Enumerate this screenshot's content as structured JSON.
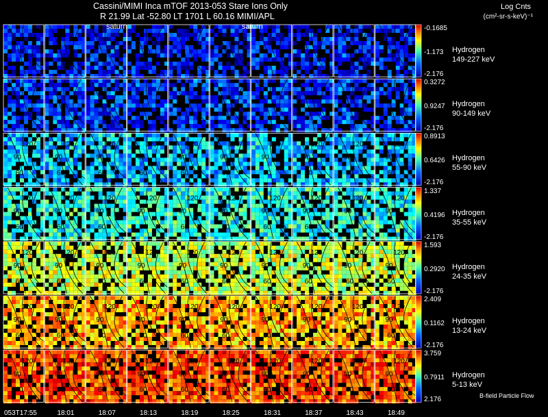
{
  "header": {
    "title": "Cassini/MIMI Inca mTOF  2013-053    Stare    Ions Only",
    "subtitle": "R        21.99 Lat -52.80 LT 1701 L          60.16  MIMI/APL",
    "saturn_label": "saturn",
    "units_title": "Log Cnts",
    "units_sub": "(cm²-sr-s-keV)⁻¹"
  },
  "chart_data": {
    "type": "heatmap",
    "title": "Cassini/MIMI Inca mTOF  2013-053    Stare    Ions Only",
    "time_ticks": [
      "053T17:55",
      "18:01",
      "18:07",
      "18:13",
      "18:19",
      "18:25",
      "18:31",
      "18:37",
      "18:43",
      "18:49"
    ],
    "contour_labels": [
      "120",
      "90",
      "60"
    ],
    "rows": [
      {
        "species": "Hydrogen",
        "energy": "149-227 keV",
        "max": "-0.1685",
        "mid": "-1.173",
        "min": "-2.176",
        "level": 0.12
      },
      {
        "species": "Hydrogen",
        "energy": "90-149 keV",
        "max": "0.3272",
        "mid": "0.9247",
        "min": "-2.176",
        "level": 0.16
      },
      {
        "species": "Hydrogen",
        "energy": "55-90 keV",
        "max": "0.8913",
        "mid": "0.6426",
        "min": "-2.176",
        "level": 0.3
      },
      {
        "species": "Hydrogen",
        "energy": "35-55 keV",
        "max": "1.337",
        "mid": "0.4196",
        "min": "-2.176",
        "level": 0.38
      },
      {
        "species": "Hydrogen",
        "energy": "24-35 keV",
        "max": "1.593",
        "mid": "0.2920",
        "min": "-2.176",
        "level": 0.55
      },
      {
        "species": "Hydrogen",
        "energy": "13-24 keV",
        "max": "2.409",
        "mid": "0.1162",
        "min": "-2.176",
        "level": 0.68
      },
      {
        "species": "Hydrogen",
        "energy": "5-13 keV",
        "max": "3.759",
        "mid": "0.7911",
        "min": "2.176",
        "level": 0.78
      }
    ]
  },
  "footer": "B-field Particle Flow"
}
